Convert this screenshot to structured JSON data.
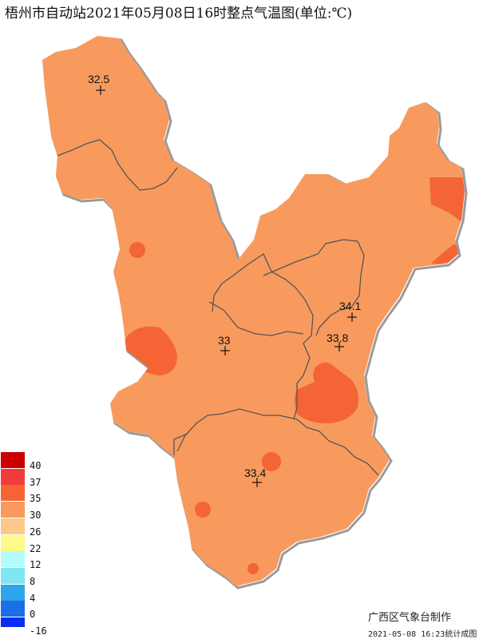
{
  "title": "梧州市自动站2021年05月08日16时整点气温图(单位:℃)",
  "colors": {
    "base_fill": "#f89a5e",
    "hot_fill": "#f46434",
    "border": "#555555",
    "outline_shadow": "#9a9a9a"
  },
  "stations": [
    {
      "name": "north",
      "value": "32.5"
    },
    {
      "name": "center",
      "value": "33"
    },
    {
      "name": "east",
      "value": "34.1"
    },
    {
      "name": "east-south",
      "value": "33.8"
    },
    {
      "name": "south",
      "value": "33.4"
    }
  ],
  "legend": [
    {
      "label": "40",
      "color": "#cc0000"
    },
    {
      "label": "37",
      "color": "#f23c3c"
    },
    {
      "label": "35",
      "color": "#f46434"
    },
    {
      "label": "30",
      "color": "#f89a5e"
    },
    {
      "label": "26",
      "color": "#fcc88c"
    },
    {
      "label": "22",
      "color": "#fbfb8c"
    },
    {
      "label": "12",
      "color": "#b4fcfc"
    },
    {
      "label": "8",
      "color": "#80e6f4"
    },
    {
      "label": "4",
      "color": "#2ca6ea"
    },
    {
      "label": "0",
      "color": "#1a6ee8"
    },
    {
      "label": "-16",
      "color": "#0a2ef0"
    }
  ],
  "footer": {
    "org": "广西区气象台制作",
    "time": "2021-05-08 16:23统计成图"
  }
}
